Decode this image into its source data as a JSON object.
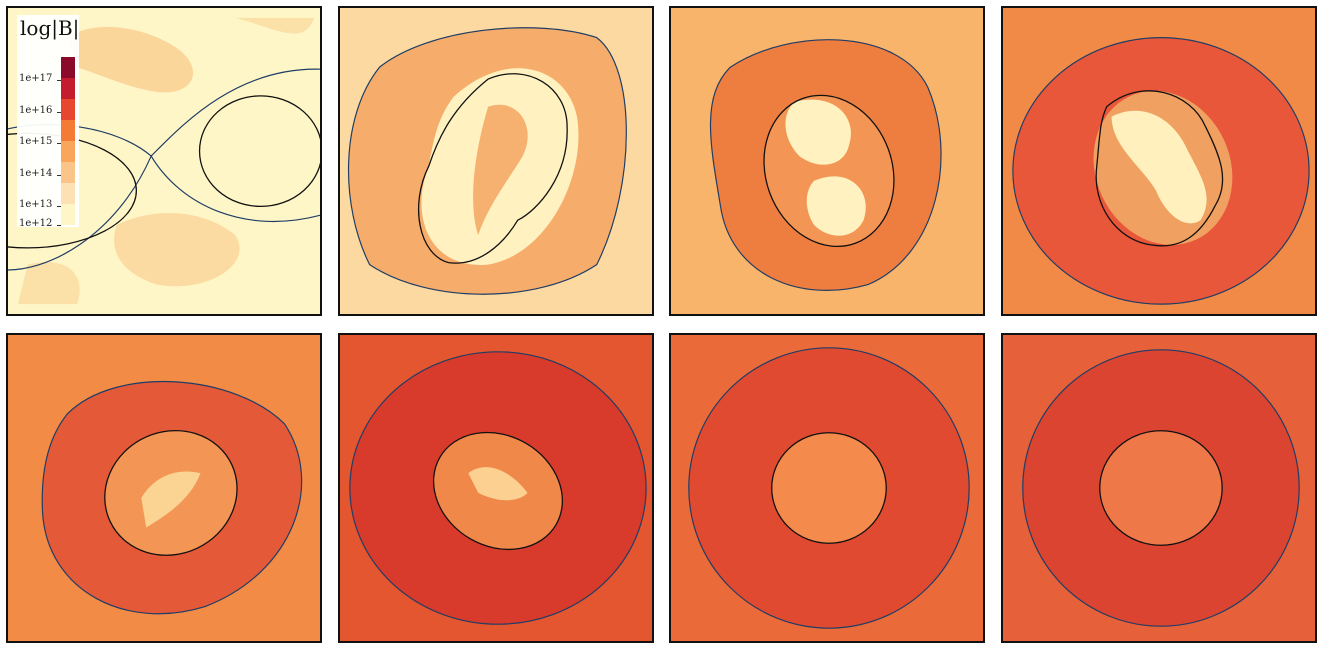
{
  "colorbar": {
    "title": "log|B|",
    "ticks": [
      "1e+17",
      "1e+16",
      "1e+15",
      "1e+14",
      "1e+13",
      "1e+12"
    ],
    "colors": [
      "#8b0a2c",
      "#c41b2e",
      "#e8472f",
      "#f47a36",
      "#f9a55c",
      "#fbc58a",
      "#fde0b3",
      "#fff6c7"
    ]
  },
  "palette": {
    "contour_outer": "#1f3d66",
    "contour_inner": "#111111",
    "background_field": [
      "#fff6c7",
      "#f8b46a",
      "#f18a47",
      "#e9573a",
      "#e45a38",
      "#d83a2b",
      "#ea6a3a",
      "#e4562f"
    ],
    "core": [
      "#fff6c7",
      "#fff6c7",
      "#fff2c0",
      "#fff0bd",
      "#fbd494",
      "#fbd090",
      "#f39554",
      "#f48a4c"
    ]
  },
  "panels": [
    {
      "name": "panel-1"
    },
    {
      "name": "panel-2"
    },
    {
      "name": "panel-3"
    },
    {
      "name": "panel-4"
    },
    {
      "name": "panel-5"
    },
    {
      "name": "panel-6"
    },
    {
      "name": "panel-7"
    },
    {
      "name": "panel-8"
    }
  ]
}
